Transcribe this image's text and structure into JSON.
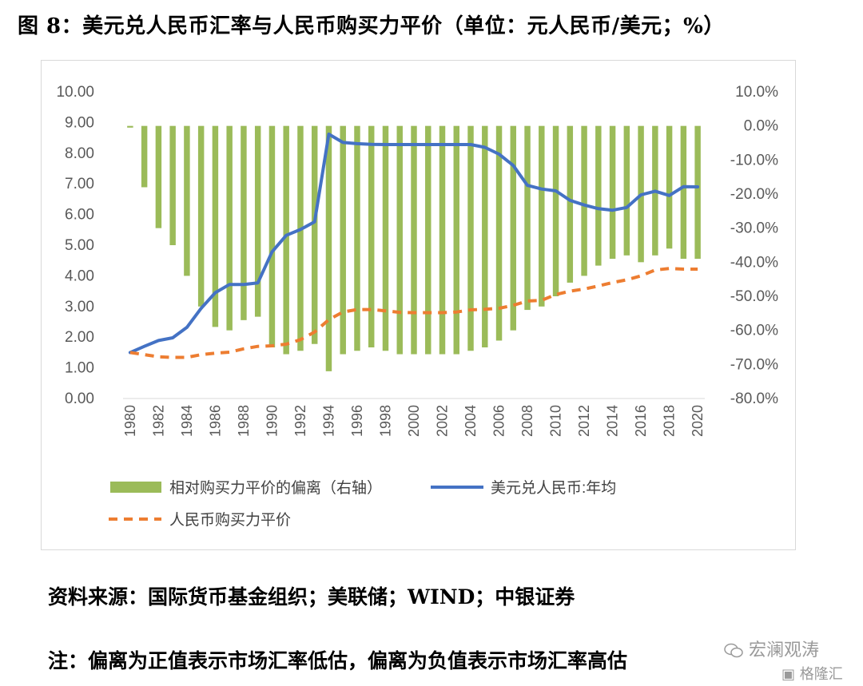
{
  "title": "图 8：美元兑人民币汇率与人民币购买力平价（单位：元人民币/美元；%）",
  "source": "资料来源：国际货币基金组织；美联储；WIND；中银证券",
  "note": "注：偏离为正值表示市场汇率低估，偏离为负值表示市场汇率高估",
  "watermark": {
    "wechat": "宏澜观涛",
    "brand": "格隆汇"
  },
  "colors": {
    "bar": "#9bbb59",
    "fx_line": "#4472c4",
    "ppp_line": "#ed7d31",
    "axis": "#d9d9d9"
  },
  "chart_data": {
    "type": "bar+line",
    "years": [
      1980,
      1981,
      1982,
      1983,
      1984,
      1985,
      1986,
      1987,
      1988,
      1989,
      1990,
      1991,
      1992,
      1993,
      1994,
      1995,
      1996,
      1997,
      1998,
      1999,
      2000,
      2001,
      2002,
      2003,
      2004,
      2005,
      2006,
      2007,
      2008,
      2009,
      2010,
      2011,
      2012,
      2013,
      2014,
      2015,
      2016,
      2017,
      2018,
      2019,
      2020
    ],
    "xtick_labels": [
      "1980",
      "1982",
      "1984",
      "1986",
      "1988",
      "1990",
      "1992",
      "1994",
      "1996",
      "1998",
      "2000",
      "2002",
      "2004",
      "2006",
      "2008",
      "2010",
      "2012",
      "2014",
      "2016",
      "2018",
      "2020"
    ],
    "left_axis": {
      "min": 0,
      "max": 10,
      "step": 1,
      "tick_labels": [
        "0.00",
        "1.00",
        "2.00",
        "3.00",
        "4.00",
        "5.00",
        "6.00",
        "7.00",
        "8.00",
        "9.00",
        "10.00"
      ]
    },
    "right_axis": {
      "min": -80,
      "max": 10,
      "step": 10,
      "tick_labels": [
        "-80.0%",
        "-70.0%",
        "-60.0%",
        "-50.0%",
        "-40.0%",
        "-30.0%",
        "-20.0%",
        "-10.0%",
        "0.0%",
        "10.0%"
      ]
    },
    "series": [
      {
        "name": "相对购买力平价的偏离（右轴）",
        "type": "bar",
        "axis": "right",
        "values": [
          -0.5,
          -18,
          -30,
          -35,
          -44,
          -53,
          -59,
          -60,
          -57,
          -56,
          -65,
          -67,
          -66,
          -64,
          -72,
          -67,
          -66,
          -65,
          -66,
          -67,
          -67,
          -67,
          -67,
          -67,
          -66,
          -65,
          -63,
          -60,
          -54,
          -53,
          -50,
          -46,
          -44,
          -41,
          -39,
          -38,
          -40,
          -38,
          -36,
          -39,
          -39
        ]
      },
      {
        "name": "美元兑人民币:年均",
        "type": "line",
        "axis": "left",
        "values": [
          1.5,
          1.7,
          1.89,
          1.98,
          2.32,
          2.94,
          3.45,
          3.72,
          3.72,
          3.77,
          4.78,
          5.32,
          5.51,
          5.76,
          8.62,
          8.35,
          8.31,
          8.29,
          8.28,
          8.28,
          8.28,
          8.28,
          8.28,
          8.28,
          8.28,
          8.19,
          7.97,
          7.6,
          6.95,
          6.83,
          6.77,
          6.46,
          6.31,
          6.19,
          6.14,
          6.23,
          6.64,
          6.76,
          6.62,
          6.91,
          6.9
        ]
      },
      {
        "name": "人民币购买力平价",
        "type": "line",
        "dashed": true,
        "axis": "left",
        "values": [
          1.5,
          1.43,
          1.36,
          1.34,
          1.34,
          1.43,
          1.48,
          1.51,
          1.62,
          1.7,
          1.72,
          1.77,
          1.92,
          2.17,
          2.57,
          2.82,
          2.9,
          2.9,
          2.86,
          2.81,
          2.8,
          2.8,
          2.8,
          2.82,
          2.89,
          2.91,
          2.94,
          3.04,
          3.18,
          3.2,
          3.39,
          3.5,
          3.57,
          3.67,
          3.78,
          3.87,
          4.0,
          4.19,
          4.24,
          4.22,
          4.22
        ]
      }
    ]
  }
}
